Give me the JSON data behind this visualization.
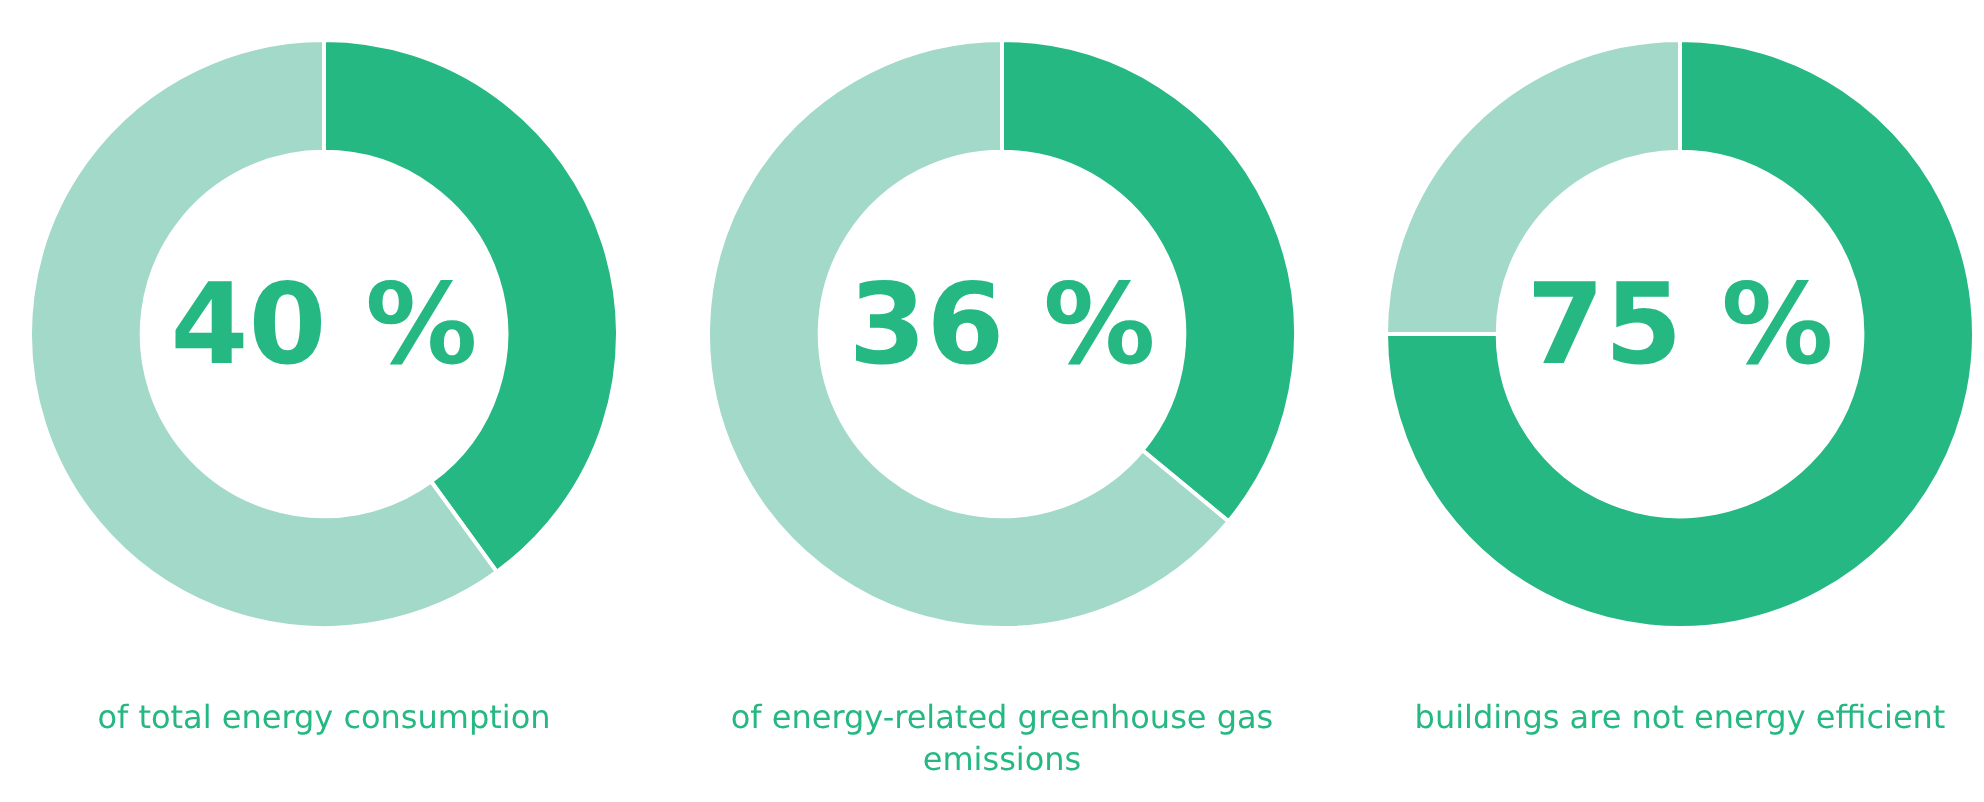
{
  "chart_data": [
    {
      "type": "donut",
      "categories": [
        null,
        null
      ],
      "values": [
        40,
        60
      ],
      "colors": [
        "#25b882",
        "#a3d9c8"
      ],
      "value_labels": [
        "40 %",
        null
      ],
      "annotations": [
        "of total energy consumption"
      ]
    },
    {
      "type": "donut",
      "categories": [
        null,
        null
      ],
      "values": [
        36,
        64
      ],
      "colors": [
        "#25b882",
        "#a3d9c8"
      ],
      "value_labels": [
        "36 %",
        null
      ],
      "annotations": [
        "of energy-related greenhouse gas emissions"
      ]
    },
    {
      "type": "donut",
      "categories": [
        null,
        null
      ],
      "values": [
        75,
        25
      ],
      "colors": [
        "#25b882",
        "#a3d9c8"
      ],
      "value_labels": [
        "75 %",
        null
      ],
      "annotations": [
        "buildings are not energy efficient"
      ]
    }
  ]
}
